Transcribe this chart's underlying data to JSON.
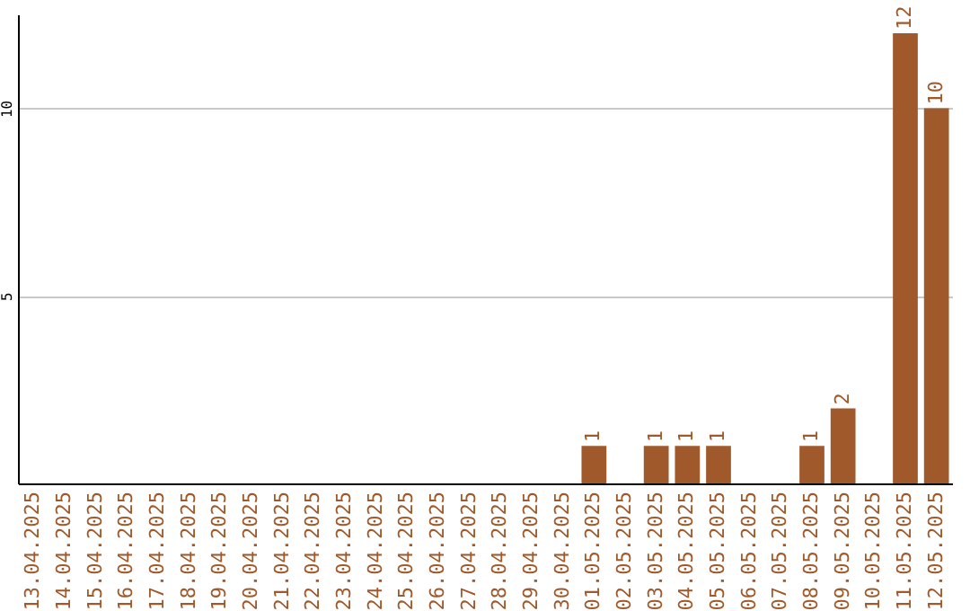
{
  "chart_data": {
    "type": "bar",
    "categories": [
      "13.04.2025",
      "14.04.2025",
      "15.04.2025",
      "16.04.2025",
      "17.04.2025",
      "18.04.2025",
      "19.04.2025",
      "20.04.2025",
      "21.04.2025",
      "22.04.2025",
      "23.04.2025",
      "24.04.2025",
      "25.04.2025",
      "26.04.2025",
      "27.04.2025",
      "28.04.2025",
      "29.04.2025",
      "30.04.2025",
      "01.05.2025",
      "02.05.2025",
      "03.05.2025",
      "04.05.2025",
      "05.05.2025",
      "06.05.2025",
      "07.05.2025",
      "08.05.2025",
      "09.05.2025",
      "10.05.2025",
      "11.05.2025",
      "12.05.2025"
    ],
    "values": [
      0,
      0,
      0,
      0,
      0,
      0,
      0,
      0,
      0,
      0,
      0,
      0,
      0,
      0,
      0,
      0,
      0,
      0,
      1,
      0,
      1,
      1,
      1,
      0,
      0,
      1,
      2,
      0,
      12,
      10
    ],
    "value_labels": [
      null,
      null,
      null,
      null,
      null,
      null,
      null,
      null,
      null,
      null,
      null,
      null,
      null,
      null,
      null,
      null,
      null,
      null,
      "1",
      null,
      "1",
      "1",
      "1",
      null,
      null,
      "1",
      "2",
      null,
      "12",
      "10"
    ],
    "color": "#a0592a",
    "ylim": [
      0,
      12.5
    ],
    "yticks": [
      5,
      10
    ],
    "grid": "y"
  }
}
